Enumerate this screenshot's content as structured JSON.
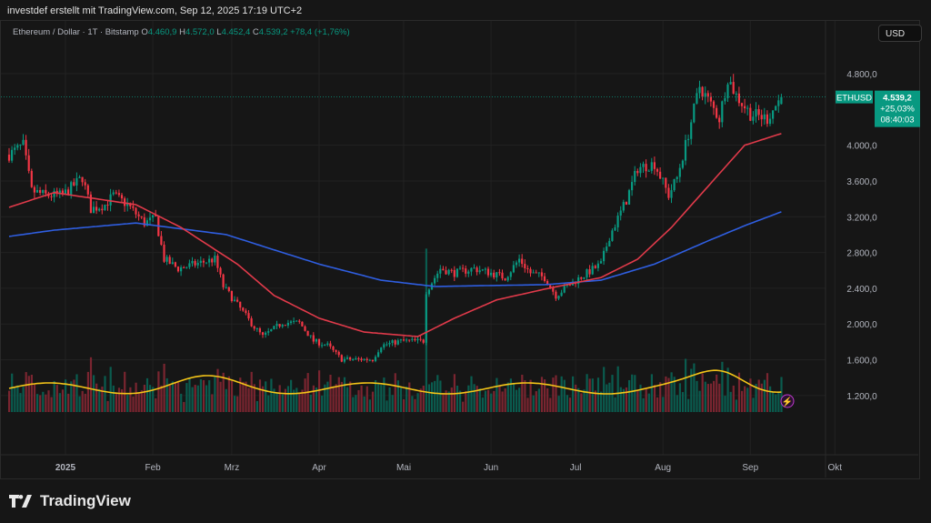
{
  "header": {
    "attribution": "investdef erstellt mit TradingView.com, Sep 12, 2025 17:19 UTC+2"
  },
  "legend": {
    "symbol": "Ethereum / Dollar · 1T · Bitstamp",
    "o_label": "O",
    "o": "4.460,9",
    "h_label": "H",
    "h": "4.572,0",
    "l_label": "L",
    "l": "4.452,4",
    "c_label": "C",
    "c": "4.539,2",
    "change": "+78,4 (+1,76%)"
  },
  "currency_button": "USD",
  "price_tag": {
    "ticker": "ETHUSD",
    "price": "4.539,2",
    "change": "+25,03%",
    "countdown": "08:40:03",
    "color": "#089981"
  },
  "footer": {
    "logo_text": "TradingView"
  },
  "colors": {
    "up": "#089981",
    "down": "#f23645",
    "ma_short": "#e03a4a",
    "ma_long": "#2f5ee0",
    "volume_ma": "#f5c518",
    "background": "#161616"
  },
  "chart_data": {
    "type": "candlestick",
    "y_ticks": [
      "4.800,0",
      "4.000,0",
      "3.600,0",
      "3.200,0",
      "2.800,0",
      "2.400,0",
      "2.000,0",
      "1.600,0",
      "1.200,0"
    ],
    "y_tick_values": [
      4800,
      4000,
      3600,
      3200,
      2800,
      2400,
      2000,
      1600,
      1200
    ],
    "x_ticks": [
      {
        "label": "2025",
        "date": "2025-01-01"
      },
      {
        "label": "Feb",
        "date": "2025-02-01"
      },
      {
        "label": "Mrz",
        "date": "2025-03-01"
      },
      {
        "label": "Apr",
        "date": "2025-04-01"
      },
      {
        "label": "Mai",
        "date": "2025-05-01"
      },
      {
        "label": "Jun",
        "date": "2025-06-01"
      },
      {
        "label": "Jul",
        "date": "2025-07-01"
      },
      {
        "label": "Aug",
        "date": "2025-08-01"
      },
      {
        "label": "Sep",
        "date": "2025-09-01"
      },
      {
        "label": "Okt",
        "date": "2025-10-01"
      }
    ],
    "grid": true,
    "close_keypoints": [
      [
        "2024-12-12",
        3895
      ],
      [
        "2024-12-17",
        4000
      ],
      [
        "2024-12-20",
        3490
      ],
      [
        "2024-12-25",
        3440
      ],
      [
        "2024-12-31",
        3440
      ],
      [
        "2025-01-07",
        3640
      ],
      [
        "2025-01-10",
        3285
      ],
      [
        "2025-01-15",
        3335
      ],
      [
        "2025-01-18",
        3440
      ],
      [
        "2025-01-23",
        3335
      ],
      [
        "2025-01-29",
        3130
      ],
      [
        "2025-02-02",
        3180
      ],
      [
        "2025-02-05",
        2725
      ],
      [
        "2025-02-10",
        2620
      ],
      [
        "2025-02-16",
        2670
      ],
      [
        "2025-02-23",
        2725
      ],
      [
        "2025-02-26",
        2420
      ],
      [
        "2025-03-03",
        2215
      ],
      [
        "2025-03-09",
        1965
      ],
      [
        "2025-03-12",
        1860
      ],
      [
        "2025-03-19",
        2015
      ],
      [
        "2025-03-25",
        2015
      ],
      [
        "2025-03-30",
        1810
      ],
      [
        "2025-04-04",
        1760
      ],
      [
        "2025-04-09",
        1605
      ],
      [
        "2025-04-14",
        1605
      ],
      [
        "2025-04-20",
        1605
      ],
      [
        "2025-04-23",
        1760
      ],
      [
        "2025-04-30",
        1810
      ],
      [
        "2025-05-08",
        1810
      ],
      [
        "2025-05-09",
        2370
      ],
      [
        "2025-05-14",
        2620
      ],
      [
        "2025-05-19",
        2570
      ],
      [
        "2025-05-26",
        2620
      ],
      [
        "2025-06-01",
        2570
      ],
      [
        "2025-06-06",
        2520
      ],
      [
        "2025-06-11",
        2725
      ],
      [
        "2025-06-15",
        2570
      ],
      [
        "2025-06-20",
        2520
      ],
      [
        "2025-06-24",
        2320
      ],
      [
        "2025-06-28",
        2420
      ],
      [
        "2025-07-05",
        2570
      ],
      [
        "2025-07-10",
        2670
      ],
      [
        "2025-07-13",
        2980
      ],
      [
        "2025-07-19",
        3385
      ],
      [
        "2025-07-23",
        3745
      ],
      [
        "2025-07-29",
        3795
      ],
      [
        "2025-08-03",
        3440
      ],
      [
        "2025-08-06",
        3640
      ],
      [
        "2025-08-09",
        4000
      ],
      [
        "2025-08-14",
        4660
      ],
      [
        "2025-08-17",
        4505
      ],
      [
        "2025-08-21",
        4300
      ],
      [
        "2025-08-24",
        4760
      ],
      [
        "2025-08-27",
        4555
      ],
      [
        "2025-09-01",
        4350
      ],
      [
        "2025-09-07",
        4300
      ],
      [
        "2025-09-12",
        4539.2
      ]
    ],
    "ma_short": [
      [
        "2024-12-12",
        3305
      ],
      [
        "2024-12-28",
        3470
      ],
      [
        "2025-01-26",
        3335
      ],
      [
        "2025-02-11",
        3080
      ],
      [
        "2025-03-03",
        2670
      ],
      [
        "2025-03-16",
        2320
      ],
      [
        "2025-04-01",
        2065
      ],
      [
        "2025-04-17",
        1910
      ],
      [
        "2025-05-06",
        1860
      ],
      [
        "2025-05-19",
        2065
      ],
      [
        "2025-06-03",
        2270
      ],
      [
        "2025-06-20",
        2390
      ],
      [
        "2025-07-10",
        2520
      ],
      [
        "2025-07-23",
        2725
      ],
      [
        "2025-08-04",
        3080
      ],
      [
        "2025-08-17",
        3540
      ],
      [
        "2025-08-30",
        4000
      ],
      [
        "2025-09-12",
        4130
      ]
    ],
    "ma_long": [
      [
        "2024-12-12",
        2980
      ],
      [
        "2024-12-28",
        3050
      ],
      [
        "2025-01-26",
        3130
      ],
      [
        "2025-02-27",
        3000
      ],
      [
        "2025-04-01",
        2670
      ],
      [
        "2025-04-23",
        2490
      ],
      [
        "2025-05-12",
        2420
      ],
      [
        "2025-06-20",
        2440
      ],
      [
        "2025-07-10",
        2490
      ],
      [
        "2025-07-29",
        2670
      ],
      [
        "2025-08-17",
        2930
      ],
      [
        "2025-08-30",
        3100
      ],
      [
        "2025-09-12",
        3255
      ]
    ]
  }
}
